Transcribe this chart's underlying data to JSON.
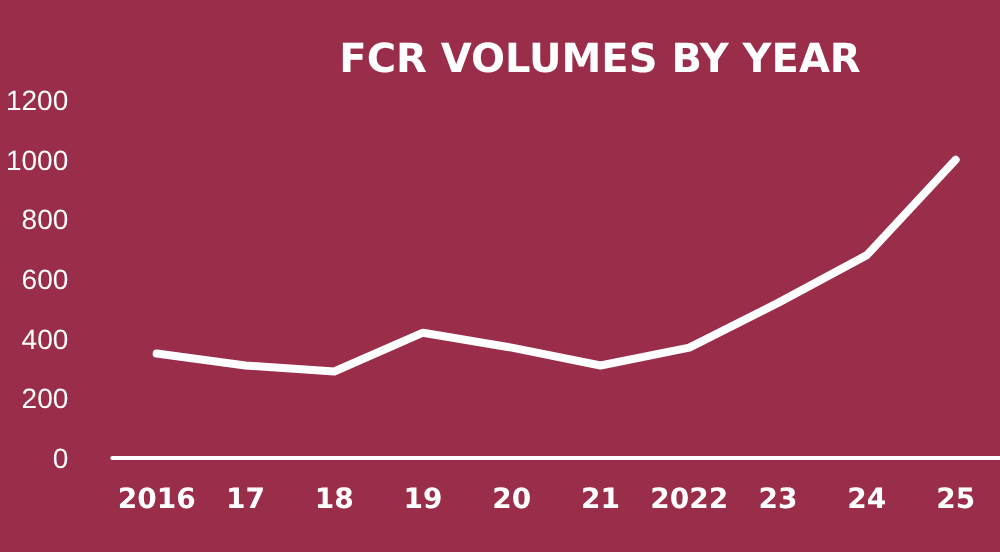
{
  "chart_data": {
    "type": "line",
    "title": "FCR VOLUMES BY YEAR",
    "categories": [
      "2016",
      "17",
      "18",
      "19",
      "20",
      "21",
      "2022",
      "23",
      "24",
      "25"
    ],
    "series": [
      {
        "color": "#ffffff",
        "values": [
          350,
          310,
          290,
          420,
          370,
          310,
          370,
          520,
          680,
          1000
        ]
      }
    ],
    "ylim": [
      0,
      1200
    ],
    "yticks": [
      0,
      200,
      400,
      600,
      800,
      1000,
      1200
    ],
    "grid": false,
    "marker": "none",
    "line_style": "solid"
  }
}
